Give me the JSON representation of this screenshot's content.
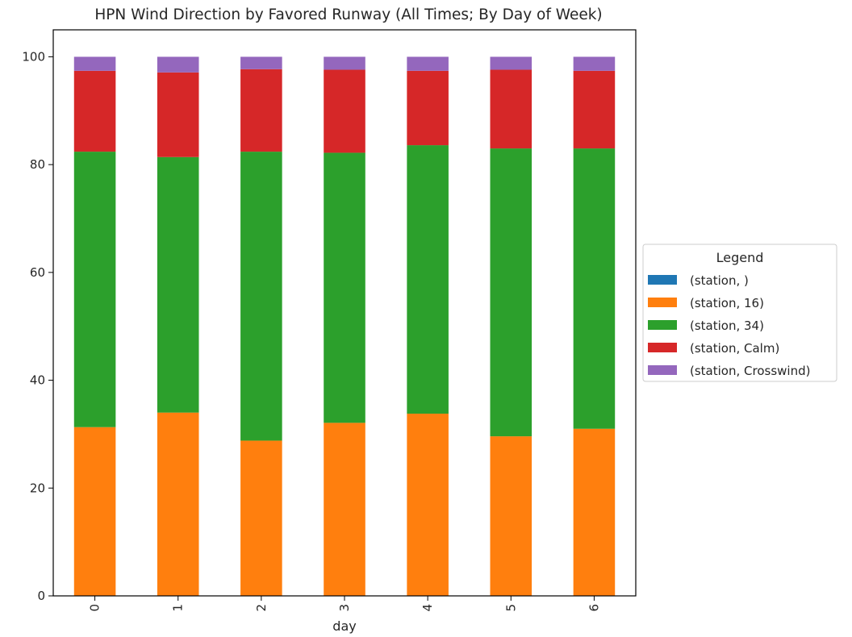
{
  "chart_data": {
    "type": "bar",
    "stacked": true,
    "title": "HPN Wind Direction by Favored Runway (All Times; By Day of Week)",
    "xlabel": "day",
    "ylabel": "",
    "categories": [
      "0",
      "1",
      "2",
      "3",
      "4",
      "5",
      "6"
    ],
    "ylim": [
      0,
      105
    ],
    "yticks": [
      0,
      20,
      40,
      60,
      80,
      100
    ],
    "grid": false,
    "legend": {
      "title": "Legend",
      "position": "right-outside"
    },
    "series": [
      {
        "name": "(station, )",
        "color": "#1f77b4",
        "values": [
          0,
          0,
          0,
          0,
          0,
          0,
          0
        ]
      },
      {
        "name": "(station, 16)",
        "color": "#ff7f0e",
        "values": [
          31.3,
          34.0,
          28.8,
          32.1,
          33.8,
          29.6,
          31.0
        ]
      },
      {
        "name": "(station, 34)",
        "color": "#2ca02c",
        "values": [
          51.1,
          47.4,
          53.6,
          50.1,
          49.8,
          53.4,
          52.0
        ]
      },
      {
        "name": "(station, Calm)",
        "color": "#d62728",
        "values": [
          15.0,
          15.7,
          15.3,
          15.4,
          13.8,
          14.6,
          14.4
        ]
      },
      {
        "name": "(station, Crosswind)",
        "color": "#9467bd",
        "values": [
          2.6,
          2.9,
          2.3,
          2.4,
          2.6,
          2.4,
          2.6
        ]
      }
    ]
  }
}
